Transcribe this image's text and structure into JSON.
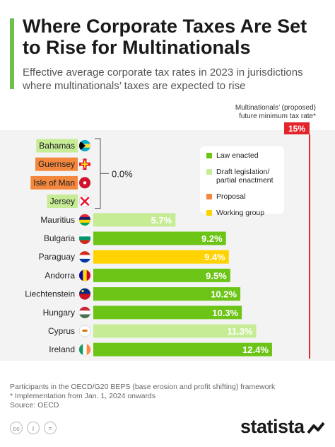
{
  "title": "Where Corporate Taxes Are Set to Rise for Multinationals",
  "subtitle": "Effective average corporate tax rates in 2023 in jurisdictions where multinationals’ taxes are expected to rise",
  "reference_line": {
    "label_line1": "Multinationals’ (proposed)",
    "label_line2": "future minimum tax rate*",
    "badge": "15%",
    "value": 15,
    "color": "#e3242b"
  },
  "zero_group": {
    "label": "0.0%",
    "countries": [
      "Bahamas",
      "Guernsey",
      "Isle of Man",
      "Jersey"
    ]
  },
  "colors": {
    "law_enacted": "#6cc417",
    "draft": "#c6ec96",
    "proposal": "#f4873e",
    "working_group": "#ffd200"
  },
  "legend": [
    {
      "key": "law_enacted",
      "label": "Law enacted"
    },
    {
      "key": "draft",
      "label": "Draft legislation/\npartial enactment"
    },
    {
      "key": "proposal",
      "label": "Proposal"
    },
    {
      "key": "working_group",
      "label": "Working group"
    }
  ],
  "chart_data": {
    "type": "bar",
    "orientation": "horizontal",
    "unit": "%",
    "xlim": [
      0,
      15
    ],
    "categories": [
      "Bahamas",
      "Guernsey",
      "Isle of Man",
      "Jersey",
      "Mauritius",
      "Bulgaria",
      "Paraguay",
      "Andorra",
      "Liechtenstein",
      "Hungary",
      "Cyprus",
      "Ireland"
    ],
    "values": [
      0.0,
      0.0,
      0.0,
      0.0,
      5.7,
      9.2,
      9.4,
      9.5,
      10.2,
      10.3,
      11.3,
      12.4
    ],
    "value_labels": [
      "",
      "",
      "",
      "",
      "5.7%",
      "9.2%",
      "9.4%",
      "9.5%",
      "10.2%",
      "10.3%",
      "11.3%",
      "12.4%"
    ],
    "status": [
      "draft",
      "proposal",
      "proposal",
      "draft",
      "draft",
      "law_enacted",
      "working_group",
      "law_enacted",
      "law_enacted",
      "law_enacted",
      "draft",
      "law_enacted"
    ],
    "flags": [
      "bahamas-flag-icon",
      "guernsey-flag-icon",
      "isle-of-man-flag-icon",
      "jersey-flag-icon",
      "mauritius-flag-icon",
      "bulgaria-flag-icon",
      "paraguay-flag-icon",
      "andorra-flag-icon",
      "liechtenstein-flag-icon",
      "hungary-flag-icon",
      "cyprus-flag-icon",
      "ireland-flag-icon"
    ]
  },
  "footer": {
    "line1": "Participants in the OECD/G20 BEPS (base erosion and profit shifting) framework",
    "line2": "* Implementation from Jan. 1, 2024 onwards",
    "line3": "Source: OECD"
  },
  "brand": "statista"
}
